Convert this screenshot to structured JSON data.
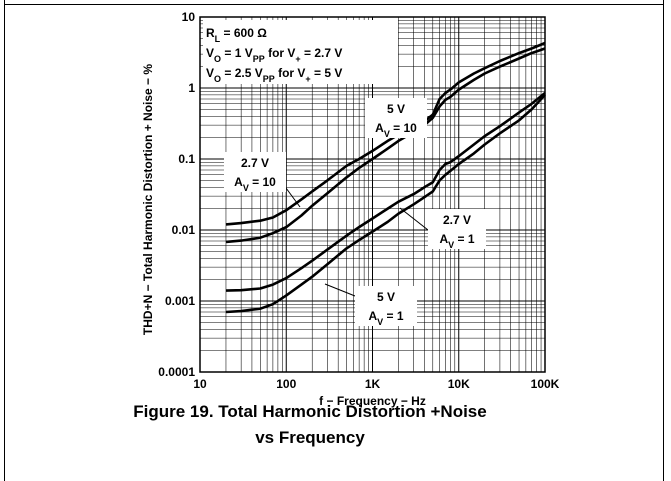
{
  "chart_data": {
    "type": "line",
    "title": "Figure 19. Total Harmonic Distortion +Noise",
    "subtitle": "vs Frequency",
    "xlabel": "f − Frequency − Hz",
    "ylabel": "THD+N − Total Harmonic Distortion + Noise − %",
    "x_scale": "log",
    "y_scale": "log",
    "xlim": [
      10,
      100000
    ],
    "ylim": [
      0.0001,
      10
    ],
    "grid": true,
    "x_ticks": [
      {
        "value": 10,
        "label": "10"
      },
      {
        "value": 100,
        "label": "100"
      },
      {
        "value": 1000,
        "label": "1K"
      },
      {
        "value": 10000,
        "label": "10K"
      },
      {
        "value": 100000,
        "label": "100K"
      }
    ],
    "y_ticks": [
      {
        "value": 10,
        "label": "10"
      },
      {
        "value": 1,
        "label": "1"
      },
      {
        "value": 0.1,
        "label": "0.1"
      },
      {
        "value": 0.01,
        "label": "0.01"
      },
      {
        "value": 0.001,
        "label": "0.001"
      },
      {
        "value": 0.0001,
        "label": "0.0001"
      }
    ],
    "conditions": [
      {
        "main": "R",
        "sub": "L",
        "rest": " = 600 Ω"
      },
      {
        "main": "V",
        "sub": "O",
        "rest": " = 1 V",
        "sub2": "PP",
        "rest2": " for V",
        "sub3": "+",
        "rest3": " = 2.7 V"
      },
      {
        "main": "V",
        "sub": "O",
        "rest": " = 2.5 V",
        "sub2": "PP",
        "rest2": " for V",
        "sub3": "+",
        "rest3": " = 5 V"
      }
    ],
    "series": [
      {
        "label_line1": "5 V",
        "label_main": "A",
        "label_sub": "V",
        "label_rest": " = 10",
        "x": [
          20,
          30,
          50,
          70,
          100,
          150,
          200,
          300,
          500,
          700,
          1000,
          1500,
          2000,
          3000,
          4000,
          5000,
          6000,
          7000,
          8000,
          10000,
          15000,
          20000,
          30000,
          50000,
          70000,
          100000
        ],
        "y": [
          0.0068,
          0.0071,
          0.0078,
          0.009,
          0.011,
          0.016,
          0.022,
          0.033,
          0.055,
          0.075,
          0.1,
          0.14,
          0.18,
          0.24,
          0.3,
          0.38,
          0.55,
          0.68,
          0.75,
          0.95,
          1.3,
          1.6,
          2.0,
          2.6,
          3.1,
          3.6
        ]
      },
      {
        "label_line1": "2.7 V",
        "label_main": "A",
        "label_sub": "V",
        "label_rest": " = 10",
        "x": [
          20,
          30,
          50,
          70,
          100,
          150,
          200,
          300,
          500,
          700,
          1000,
          1500,
          2000,
          3000,
          4000,
          5000,
          6000,
          7000,
          8000,
          10000,
          15000,
          20000,
          30000,
          50000,
          70000,
          100000
        ],
        "y": [
          0.012,
          0.0125,
          0.0135,
          0.015,
          0.019,
          0.027,
          0.035,
          0.05,
          0.08,
          0.1,
          0.13,
          0.18,
          0.22,
          0.29,
          0.34,
          0.42,
          0.7,
          0.85,
          0.95,
          1.2,
          1.6,
          1.9,
          2.4,
          3.1,
          3.6,
          4.3
        ]
      },
      {
        "label_line1": "2.7 V",
        "label_main": "A",
        "label_sub": "V",
        "label_rest": " = 1",
        "x": [
          20,
          30,
          50,
          70,
          100,
          150,
          200,
          300,
          500,
          700,
          1000,
          1500,
          2000,
          3000,
          4000,
          5000,
          6000,
          7000,
          8000,
          10000,
          15000,
          20000,
          30000,
          50000,
          70000,
          100000
        ],
        "y": [
          0.0014,
          0.00142,
          0.0015,
          0.0017,
          0.0021,
          0.0029,
          0.0037,
          0.0053,
          0.0083,
          0.011,
          0.0145,
          0.02,
          0.025,
          0.032,
          0.04,
          0.047,
          0.07,
          0.085,
          0.09,
          0.11,
          0.16,
          0.21,
          0.29,
          0.45,
          0.6,
          0.85
        ]
      },
      {
        "label_line1": "5 V",
        "label_main": "A",
        "label_sub": "V",
        "label_rest": " = 1",
        "x": [
          20,
          30,
          50,
          70,
          100,
          150,
          200,
          300,
          500,
          700,
          1000,
          1500,
          2000,
          3000,
          4000,
          5000,
          6000,
          7000,
          8000,
          10000,
          15000,
          20000,
          30000,
          50000,
          70000,
          100000
        ],
        "y": [
          0.0007,
          0.00072,
          0.00078,
          0.0009,
          0.0012,
          0.0017,
          0.0022,
          0.0033,
          0.0055,
          0.0072,
          0.0095,
          0.013,
          0.017,
          0.023,
          0.029,
          0.035,
          0.05,
          0.06,
          0.068,
          0.085,
          0.12,
          0.16,
          0.23,
          0.35,
          0.5,
          0.8
        ]
      }
    ]
  }
}
